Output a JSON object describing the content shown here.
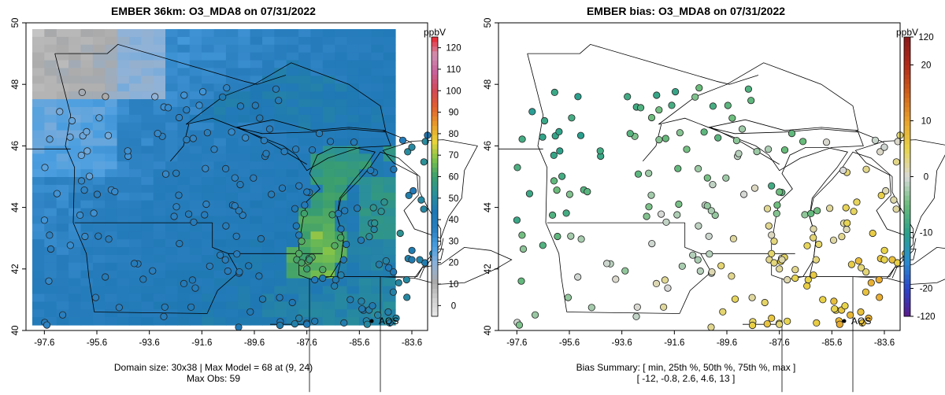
{
  "chart_data": [
    {
      "type": "heatmap",
      "title": "EMBER 36km: O3_MDA8 on 07/31/2022",
      "xticks": [
        "-97.6",
        "-95.6",
        "-93.6",
        "-91.6",
        "-89.6",
        "-87.6",
        "-85.6",
        "-83.6"
      ],
      "yticks": [
        "40",
        "42",
        "44",
        "46",
        "48",
        "50"
      ],
      "xlim": [
        -98.3,
        -83.0
      ],
      "ylim": [
        40.0,
        50.0
      ],
      "colorbar": {
        "label": "ppbV",
        "ticks": [
          "0",
          "10",
          "20",
          "30",
          "40",
          "50",
          "60",
          "70",
          "80",
          "90",
          "100",
          "110",
          "120"
        ],
        "range": [
          -5,
          125
        ],
        "colors": [
          "#e8e8e8",
          "#cfcfcf",
          "#a9a9a9",
          "#8fb2d8",
          "#4a9ee0",
          "#2a7fbf",
          "#1f78b4",
          "#2a8f9a",
          "#3a9e6f",
          "#7ec24a",
          "#e8d43a",
          "#e89a2a",
          "#e06030",
          "#d14858",
          "#c8609a",
          "#d090b0",
          "#e8242a"
        ]
      },
      "legend": "AQS",
      "footer": [
        "Domain size: 30x38 | Max Model = 68 at (9, 24)",
        "Max Obs: 59"
      ]
    },
    {
      "type": "scatter",
      "title": "EMBER bias: O3_MDA8 on 07/31/2022",
      "xticks": [
        "-97.6",
        "-95.6",
        "-93.6",
        "-91.6",
        "-89.6",
        "-87.6",
        "-85.6",
        "-83.6"
      ],
      "yticks": [
        "40",
        "42",
        "44",
        "46",
        "48",
        "50"
      ],
      "xlim": [
        -98.3,
        -83.0
      ],
      "ylim": [
        40.0,
        50.0
      ],
      "colorbar": {
        "label": "ppbV",
        "ticks": [
          "-120",
          "-20",
          "-10",
          "0",
          "10",
          "20",
          "120"
        ],
        "tick_values": [
          -25,
          -20,
          -10,
          0,
          10,
          20,
          25
        ],
        "colors": [
          "#5a1a8a",
          "#2a44c8",
          "#2a8fd0",
          "#2aa08a",
          "#6abc7a",
          "#d9d9d9",
          "#e8d44a",
          "#e8a22a",
          "#d0601a",
          "#b02a1a",
          "#8a1a1a"
        ]
      },
      "legend": "AQS",
      "footer": [
        "Bias Summary: [ min, 25th %, 50th %, 75th %, max ]",
        "[ -12,   -0.8,   2.6,   4.6,   13 ]"
      ],
      "summary": {
        "min": -12,
        "p25": -0.8,
        "p50": 2.6,
        "p75": 4.6,
        "max": 13
      }
    }
  ]
}
